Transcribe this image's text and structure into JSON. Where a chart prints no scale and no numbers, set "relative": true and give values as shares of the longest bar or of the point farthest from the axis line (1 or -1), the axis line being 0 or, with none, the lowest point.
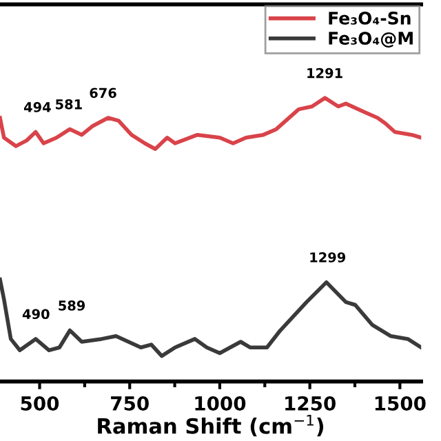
{
  "chart_data": {
    "type": "line",
    "xlabel": "Raman Shift (cm$^{−1}$)",
    "relative": true,
    "xlim": [
      390,
      1559
    ],
    "xticks": [
      500,
      750,
      1000,
      1250,
      1500
    ],
    "grid": false,
    "legend": "top right",
    "marker": "none",
    "line_style": "solid",
    "series": [
      {
        "name": "Fe₃O₄-Sn",
        "color": "#d9434a",
        "x": [
          390,
          401,
          434,
          464,
          489,
          511,
          547,
          584,
          617,
          646,
          690,
          719,
          755,
          792,
          821,
          854,
          876,
          938,
          1000,
          1037,
          1073,
          1121,
          1157,
          1219,
          1256,
          1292,
          1329,
          1350,
          1402,
          1438,
          1460,
          1486,
          1533,
          1559
        ],
        "values": [
          0.93,
          0.86,
          0.83,
          0.85,
          0.88,
          0.84,
          0.86,
          0.89,
          0.87,
          0.9,
          0.93,
          0.92,
          0.87,
          0.84,
          0.82,
          0.86,
          0.84,
          0.87,
          0.86,
          0.84,
          0.86,
          0.87,
          0.89,
          0.96,
          0.97,
          1.0,
          0.97,
          0.98,
          0.95,
          0.93,
          0.91,
          0.88,
          0.87,
          0.86
        ]
      },
      {
        "name": "Fe₃O₄@M",
        "color": "#3a3a3a",
        "x": [
          390,
          401,
          420,
          445,
          489,
          526,
          555,
          584,
          617,
          672,
          712,
          781,
          810,
          839,
          876,
          931,
          964,
          1000,
          1058,
          1084,
          1131,
          1168,
          1241,
          1296,
          1350,
          1376,
          1423,
          1475,
          1522,
          1559
        ],
        "values": [
          0.36,
          0.29,
          0.15,
          0.11,
          0.15,
          0.11,
          0.12,
          0.18,
          0.14,
          0.15,
          0.16,
          0.12,
          0.13,
          0.09,
          0.12,
          0.15,
          0.12,
          0.1,
          0.14,
          0.12,
          0.12,
          0.18,
          0.28,
          0.35,
          0.28,
          0.27,
          0.2,
          0.16,
          0.15,
          0.12
        ]
      }
    ],
    "annotations": [
      {
        "text": "494",
        "x": 494,
        "y": 0.88
      },
      {
        "text": "581",
        "x": 581,
        "y": 0.89
      },
      {
        "text": "676",
        "x": 676,
        "y": 0.93
      },
      {
        "text": "1291",
        "x": 1291,
        "y": 1.0
      },
      {
        "text": "490",
        "x": 490,
        "y": 0.15
      },
      {
        "text": "589",
        "x": 589,
        "y": 0.18
      },
      {
        "text": "1299",
        "x": 1299,
        "y": 0.35
      }
    ]
  }
}
